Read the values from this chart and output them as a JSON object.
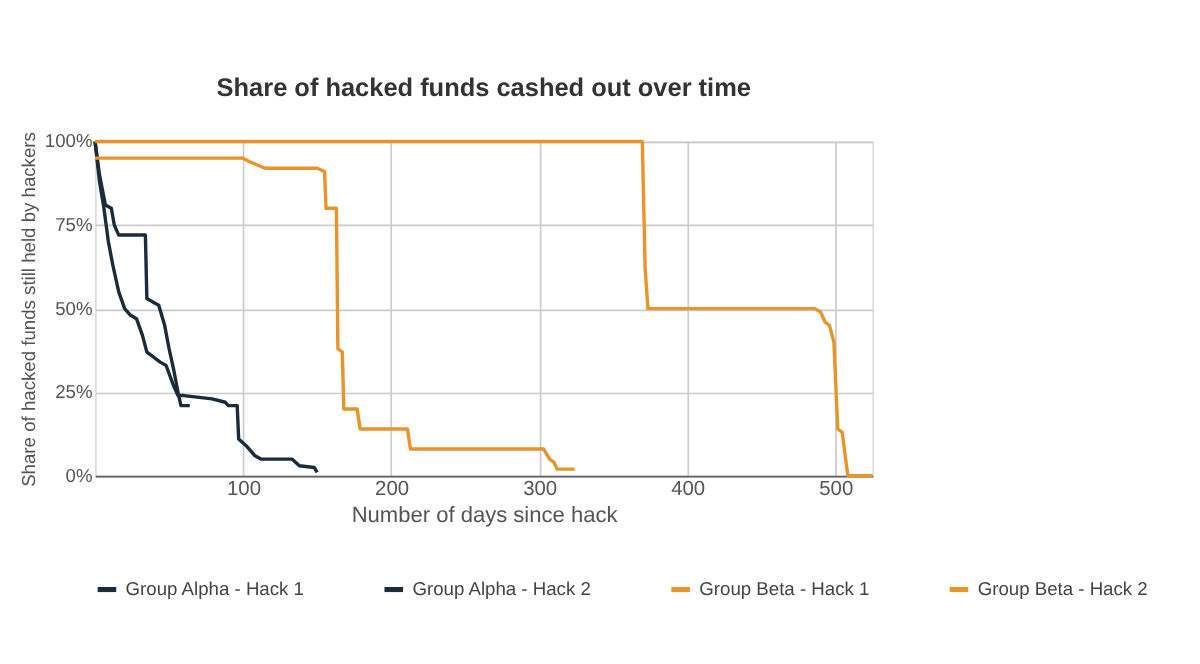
{
  "chart_data": {
    "type": "line",
    "title": "Share of hacked funds cashed out over time",
    "xlabel": "Number of days since hack",
    "ylabel": "Share of hacked funds still held by hackers",
    "xlim": [
      0,
      525
    ],
    "xticks": [
      100,
      200,
      300,
      400,
      500
    ],
    "ylim": [
      0,
      100
    ],
    "yticks": [
      {
        "value": 0,
        "label": "0%"
      },
      {
        "value": 25,
        "label": "25%"
      },
      {
        "value": 50,
        "label": "50%"
      },
      {
        "value": 75,
        "label": "75%"
      },
      {
        "value": 100,
        "label": "100%"
      }
    ],
    "grid": true,
    "legend": "bottom",
    "marker": "none",
    "line_style": "solid",
    "series": [
      {
        "name": "Group Alpha - Hack 1",
        "color": "#1c2b39",
        "x": [
          0,
          3,
          7,
          11,
          13,
          16,
          34,
          35,
          39,
          43,
          47,
          50,
          53,
          56,
          58,
          64
        ],
        "values": [
          100,
          90,
          81,
          80,
          75,
          72,
          72,
          53,
          52,
          51,
          45,
          38,
          32,
          25,
          21,
          21
        ]
      },
      {
        "name": "Group Alpha - Hack 2",
        "color": "#1c2b39",
        "x": [
          0,
          3,
          6,
          9,
          12,
          16,
          20,
          24,
          28,
          32,
          35,
          38,
          44,
          48,
          53,
          56,
          60,
          79,
          88,
          90,
          96,
          97,
          102,
          108,
          112,
          133,
          138,
          148,
          150
        ],
        "values": [
          100,
          88,
          80,
          70,
          63,
          55,
          50,
          48,
          47,
          42,
          37,
          36,
          34,
          33,
          27,
          24,
          24,
          23,
          22,
          21,
          21,
          11,
          9,
          6,
          5,
          5,
          3,
          2.5,
          1
        ]
      },
      {
        "name": "Group Beta - Hack 1",
        "color": "#e8942b",
        "x": [
          0,
          100,
          104,
          115,
          150,
          155,
          156,
          163,
          164,
          167,
          168,
          177,
          179,
          211,
          213,
          303,
          307,
          310,
          312,
          324
        ],
        "values": [
          95,
          95,
          94,
          92,
          92,
          91,
          80,
          80,
          38,
          37,
          20,
          20,
          14,
          14,
          8,
          8,
          5,
          4,
          2,
          2
        ]
      },
      {
        "name": "Group Beta - Hack 2",
        "color": "#e8942b",
        "x": [
          0,
          369.6,
          371.5,
          373.4,
          486,
          490,
          493,
          496,
          499,
          501.6,
          504.6,
          508.4,
          525
        ],
        "values": [
          100,
          100,
          62,
          50,
          50,
          49,
          46,
          45,
          40,
          14,
          13,
          0,
          0
        ]
      }
    ]
  }
}
